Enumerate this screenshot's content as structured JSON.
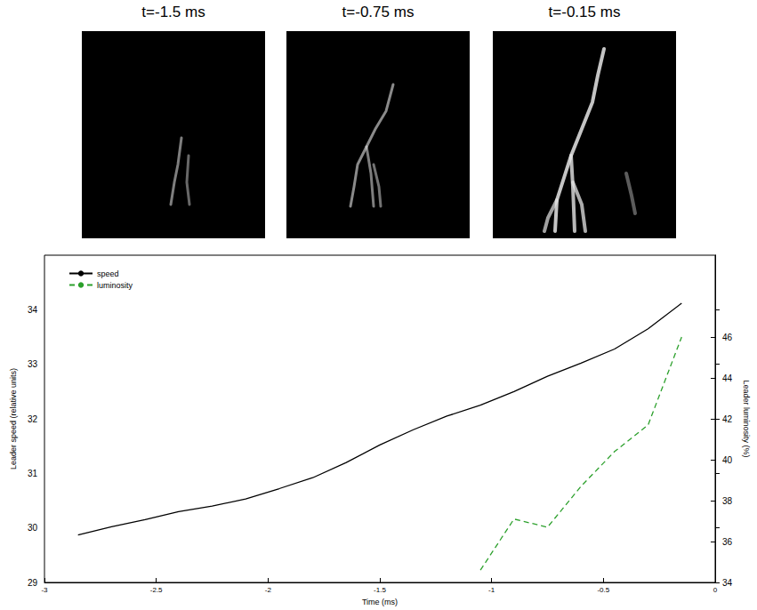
{
  "panels": [
    {
      "title": "t=-1.5 ms"
    },
    {
      "title": "t=-0.75 ms"
    },
    {
      "title": "t=-0.15 ms"
    }
  ],
  "chart_data": {
    "type": "line",
    "x_label": "Time (ms)",
    "y_label": "Leader speed (relative units)",
    "y2_label": "Leader luminosity (%)",
    "xlim": [
      -3,
      0
    ],
    "xticks": [
      -3,
      -2.5,
      -2,
      -1.5,
      -1,
      -0.5,
      0
    ],
    "ylim": [
      29,
      35
    ],
    "yticks": [
      29,
      30,
      31,
      32,
      33,
      34
    ],
    "y2lim": [
      34,
      50
    ],
    "y2ticks": [
      34,
      36,
      38,
      40,
      42,
      44,
      46
    ],
    "legend": "upper left",
    "grid": false,
    "series": [
      {
        "name": "speed",
        "color": "#000000",
        "line_style": "solid",
        "x": [
          -2.85,
          -2.7,
          -2.55,
          -2.4,
          -2.25,
          -2.1,
          -1.95,
          -1.8,
          -1.65,
          -1.5,
          -1.35,
          -1.2,
          -1.05,
          -0.9,
          -0.75,
          -0.6,
          -0.45,
          -0.3,
          -0.15
        ],
        "values": [
          29.87,
          30.02,
          30.15,
          30.3,
          30.4,
          30.53,
          30.72,
          30.92,
          31.2,
          31.52,
          31.8,
          32.05,
          32.25,
          32.5,
          32.78,
          33.02,
          33.28,
          33.65,
          34.12
        ]
      },
      {
        "name": "luminosity",
        "color": "#2ca02c",
        "line_style": "dashed",
        "axis": "y2",
        "x": [
          -1.05,
          -0.9,
          -0.75,
          -0.6,
          -0.45,
          -0.3,
          -0.15
        ],
        "values": [
          34.6,
          37.1,
          36.7,
          38.7,
          40.4,
          41.7,
          46.0
        ]
      }
    ]
  }
}
